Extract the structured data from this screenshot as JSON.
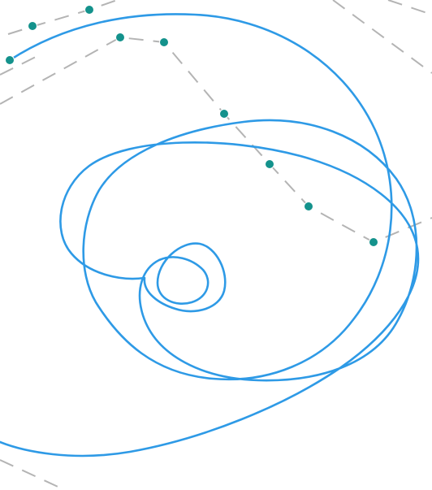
{
  "colors": {
    "background": "#ffffff",
    "curve": "#2e9ae6",
    "control_point": "#14928c",
    "guide": "#b4b4b4"
  },
  "diagram": {
    "curve_count": 1,
    "control_point_count": 10,
    "guide_line_style": "dashed"
  }
}
